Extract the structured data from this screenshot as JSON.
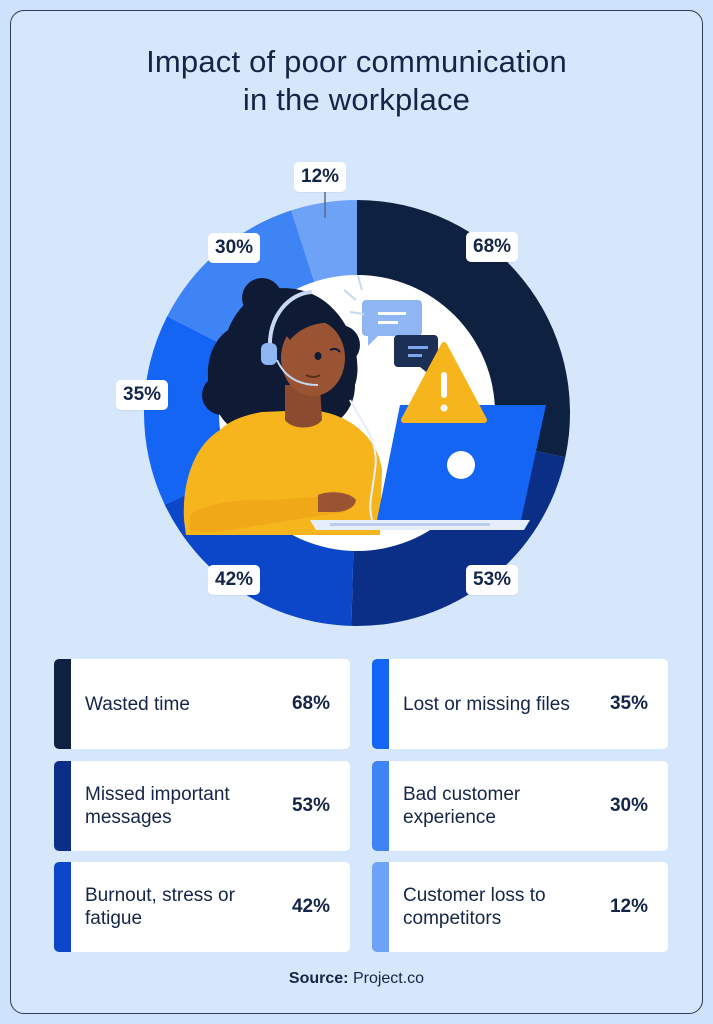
{
  "title": {
    "line1": "Impact of poor communication",
    "line2": "in the workplace"
  },
  "chart_data": {
    "type": "pie",
    "style": "donut",
    "categories": [
      "Wasted time",
      "Missed important messages",
      "Burnout, stress or fatigue",
      "Lost or missing files",
      "Bad customer experience",
      "Customer loss to competitors"
    ],
    "values": [
      68,
      53,
      42,
      35,
      30,
      12
    ],
    "labels": [
      "68%",
      "53%",
      "42%",
      "35%",
      "30%",
      "12%"
    ],
    "colors": [
      "#0f2141",
      "#0b2f86",
      "#0c47c9",
      "#1565f4",
      "#3f84f5",
      "#6da2f7"
    ]
  },
  "items": [
    {
      "label": "Wasted time",
      "value": "68%",
      "color": "#0f2141"
    },
    {
      "label": "Missed important messages",
      "value": "53%",
      "color": "#0b2f86"
    },
    {
      "label": "Burnout, stress or fatigue",
      "value": "42%",
      "color": "#0c47c9"
    },
    {
      "label": "Lost or missing files",
      "value": "35%",
      "color": "#1565f4"
    },
    {
      "label": "Bad customer experience",
      "value": "30%",
      "color": "#3f84f5"
    },
    {
      "label": "Customer loss to competitors",
      "value": "12%",
      "color": "#6da2f7"
    }
  ],
  "source": {
    "prefix": "Source:",
    "text": "Project.co"
  },
  "icons": [
    "person-at-laptop-illustration",
    "chat-bubble-icon",
    "warning-icon",
    "headset-icon"
  ]
}
